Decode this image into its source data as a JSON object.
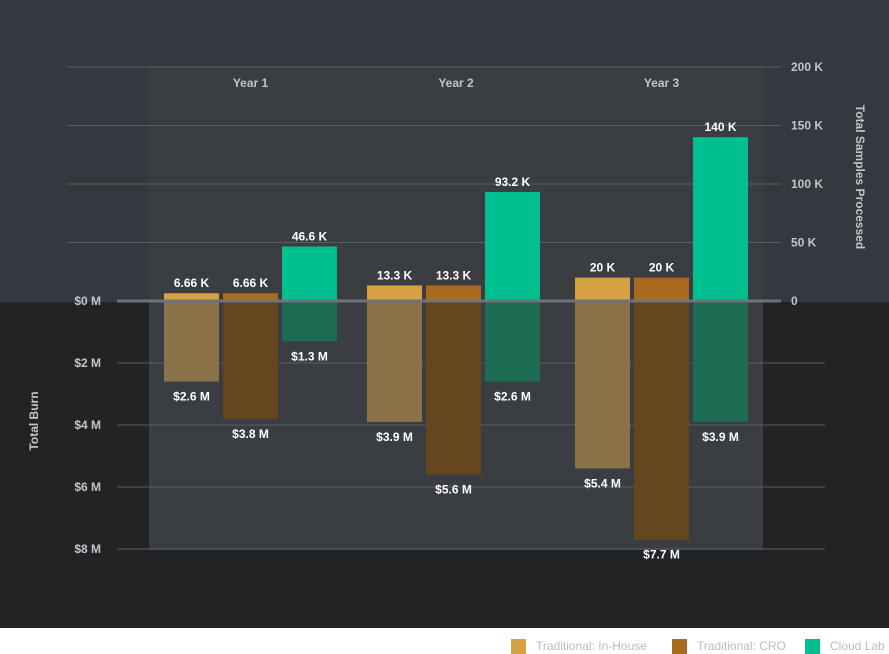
{
  "colors": {
    "upper_bg": "#35383e",
    "lower_bg": "#212325",
    "band_bg": "#3a3d42",
    "grid": "#5a5e63",
    "axis_line": "#6d737a",
    "text_light": "#ffffff",
    "text_muted": "#c2c6ca",
    "legend_text": "#b8bcbf"
  },
  "chart_data": {
    "type": "bar",
    "categories": [
      "Year 1",
      "Year 2",
      "Year 3"
    ],
    "upper_axis": {
      "label": "Total Samples Processed",
      "range": [
        0,
        200000
      ],
      "ticks": [
        {
          "value": 0,
          "label": "0"
        },
        {
          "value": 50000,
          "label": "50 K"
        },
        {
          "value": 100000,
          "label": "100 K"
        },
        {
          "value": 150000,
          "label": "150 K"
        },
        {
          "value": 200000,
          "label": "200 K"
        }
      ]
    },
    "lower_axis": {
      "label": "Total Burn",
      "range": [
        0,
        8
      ],
      "unit": "$ M",
      "ticks": [
        {
          "value": 0,
          "label": "$0 M"
        },
        {
          "value": 2,
          "label": "$2 M"
        },
        {
          "value": 4,
          "label": "$4 M"
        },
        {
          "value": 6,
          "label": "$6 M"
        },
        {
          "value": 8,
          "label": "$8 M"
        }
      ]
    },
    "series": [
      {
        "name": "Traditional: In-House",
        "color": "#d6a142",
        "burn_color": "#8a7249",
        "samples": [
          6660,
          13300,
          20000
        ],
        "samples_labels": [
          "6.66 K",
          "13.3 K",
          "20 K"
        ],
        "burn": [
          2.6,
          3.9,
          5.4
        ],
        "burn_labels": [
          "$2.6 M",
          "$3.9 M",
          "$5.4 M"
        ]
      },
      {
        "name": "Traditional: CRO",
        "color": "#a96a1f",
        "burn_color": "#65471f",
        "samples": [
          6660,
          13300,
          20000
        ],
        "samples_labels": [
          "6.66 K",
          "13.3 K",
          "20 K"
        ],
        "burn": [
          3.8,
          5.6,
          7.7
        ],
        "burn_labels": [
          "$3.8 M",
          "$5.6 M",
          "$7.7 M"
        ]
      },
      {
        "name": "Cloud Lab",
        "color": "#00c08f",
        "burn_color": "#1c6b52",
        "samples": [
          46600,
          93200,
          140000
        ],
        "samples_labels": [
          "46.6 K",
          "93.2 K",
          "140 K"
        ],
        "burn": [
          1.3,
          2.6,
          3.9
        ],
        "burn_labels": [
          "$1.3 M",
          "$2.6 M",
          "$3.9 M"
        ]
      }
    ],
    "legend_position": "bottom-right",
    "grid": true
  }
}
